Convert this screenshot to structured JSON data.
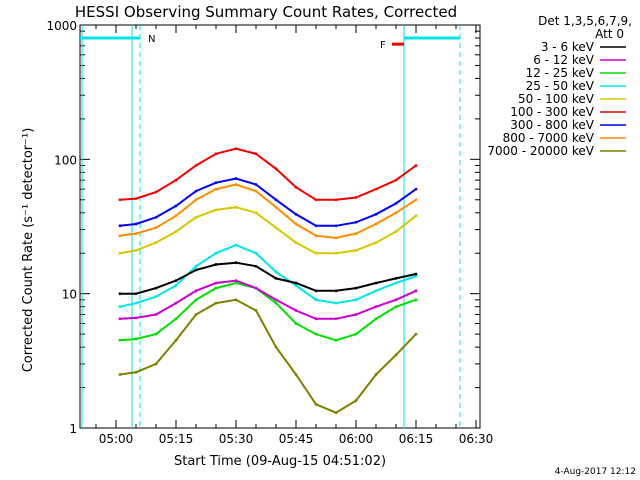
{
  "chart_data": {
    "type": "line",
    "title": "HESSI Observing Summary Count Rates, Corrected",
    "xlabel": "Start Time (09-Aug-15 04:51:02)",
    "ylabel": "Corrected Count Rate (s⁻¹ detector⁻¹)",
    "yscale": "log",
    "ylim": [
      1,
      1000
    ],
    "xlim": [
      "04:51",
      "06:31"
    ],
    "x_ticks": [
      "05:00",
      "05:15",
      "05:30",
      "05:45",
      "06:00",
      "06:15",
      "06:30"
    ],
    "y_ticks": [
      "1",
      "10",
      "100",
      "1000"
    ],
    "legend_header": [
      "Det 1,3,5,6,7,9,",
      "Att 0"
    ],
    "legend_placement": "right",
    "footer": "4-Aug-2017 12:12",
    "annotations": {
      "night_marker": "N",
      "flare_marker": "F",
      "saa_start": "05:06",
      "saa_end": "06:12",
      "night_segments": [
        [
          "04:51",
          "05:06"
        ],
        [
          "06:12",
          "06:26"
        ]
      ],
      "flare_segment": [
        "06:09",
        "06:12"
      ]
    },
    "x": [
      "04:51",
      "05:00",
      "05:01",
      "05:05",
      "05:10",
      "05:15",
      "05:20",
      "05:25",
      "05:30",
      "05:35",
      "05:40",
      "05:45",
      "05:50",
      "05:55",
      "06:00",
      "06:05",
      "06:10",
      "06:15"
    ],
    "series": [
      {
        "name": "3 - 6 keV",
        "color": "#000000",
        "values": [
          null,
          null,
          10,
          10,
          11,
          12.5,
          15,
          16.5,
          17,
          16,
          13,
          12,
          10.5,
          10.5,
          11,
          12,
          13,
          14
        ]
      },
      {
        "name": "6 - 12 keV",
        "color": "#cc00cc",
        "values": [
          null,
          null,
          6.5,
          6.6,
          7,
          8.5,
          10.5,
          12,
          12.5,
          11,
          9,
          7.5,
          6.5,
          6.5,
          7,
          8,
          9,
          10.5
        ]
      },
      {
        "name": "12 - 25 keV",
        "color": "#00dd00",
        "values": [
          null,
          null,
          4.5,
          4.6,
          5,
          6.5,
          9,
          11,
          12,
          11,
          8.5,
          6,
          5,
          4.5,
          5,
          6.5,
          8,
          9
        ]
      },
      {
        "name": "25 - 50 keV",
        "color": "#00e5e5",
        "values": [
          null,
          null,
          8,
          8.5,
          9.5,
          11.5,
          16,
          20,
          23,
          20,
          14.5,
          11.5,
          9,
          8.5,
          9,
          10.5,
          12,
          13.5
        ]
      },
      {
        "name": "50 - 100 keV",
        "color": "#d4c800",
        "values": [
          null,
          null,
          20,
          21,
          24,
          29,
          37,
          42,
          44,
          40,
          31,
          24,
          20,
          20,
          21,
          24,
          29,
          38
        ]
      },
      {
        "name": "100 - 300 keV",
        "color": "#ee0000",
        "values": [
          null,
          null,
          50,
          51,
          57,
          70,
          90,
          110,
          120,
          110,
          85,
          62,
          50,
          50,
          52,
          60,
          70,
          90
        ]
      },
      {
        "name": "300 - 800 keV",
        "color": "#0000ee",
        "values": [
          null,
          null,
          32,
          33,
          37,
          45,
          58,
          67,
          72,
          65,
          50,
          39,
          32,
          32,
          34,
          39,
          47,
          60
        ]
      },
      {
        "name": "800 - 7000 keV",
        "color": "#ff8c00",
        "values": [
          null,
          null,
          27,
          28,
          31,
          38,
          50,
          60,
          65,
          58,
          44,
          33,
          27,
          26,
          28,
          33,
          40,
          50
        ]
      },
      {
        "name": "7000 - 20000 keV",
        "color": "#808000",
        "values": [
          null,
          null,
          2.5,
          2.6,
          3,
          4.5,
          7,
          8.5,
          9,
          7.5,
          4,
          2.5,
          1.5,
          1.3,
          1.6,
          2.5,
          3.5,
          5
        ]
      }
    ]
  }
}
